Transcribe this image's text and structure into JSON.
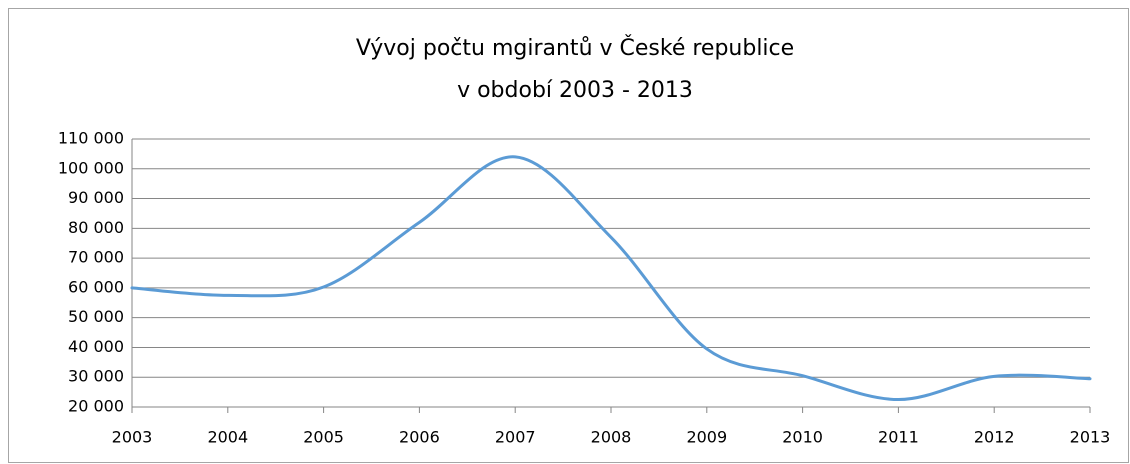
{
  "chart_data": {
    "type": "line",
    "title": [
      "Vývoj počtu mgirantů v České republice",
      "v období 2003 - 2013"
    ],
    "categories": [
      "2003",
      "2004",
      "2005",
      "2006",
      "2007",
      "2008",
      "2009",
      "2010",
      "2011",
      "2012",
      "2013"
    ],
    "values": [
      60000,
      57500,
      60300,
      82000,
      104000,
      77000,
      39500,
      30500,
      22500,
      30300,
      29500
    ],
    "color": "#5b9bd5",
    "ylim": [
      20000,
      110000
    ],
    "yticks": [
      {
        "value": 20000,
        "label": "20 000"
      },
      {
        "value": 30000,
        "label": "30 000"
      },
      {
        "value": 40000,
        "label": "40 000"
      },
      {
        "value": 50000,
        "label": "50 000"
      },
      {
        "value": 60000,
        "label": "60 000"
      },
      {
        "value": 70000,
        "label": "70 000"
      },
      {
        "value": 80000,
        "label": "80 000"
      },
      {
        "value": 90000,
        "label": "90 000"
      },
      {
        "value": 100000,
        "label": "100 000"
      },
      {
        "value": 110000,
        "label": "110 000"
      }
    ],
    "grid": true,
    "smooth": true
  }
}
